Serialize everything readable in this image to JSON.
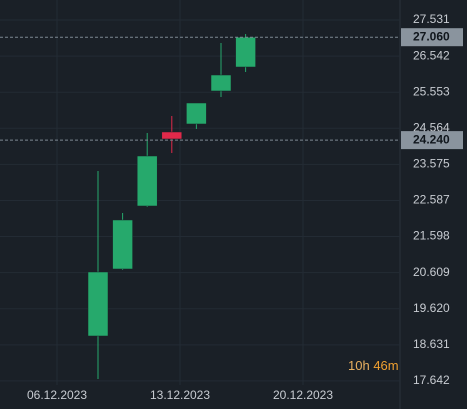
{
  "chart_data": {
    "type": "candlestick",
    "categories": [
      null,
      null,
      null,
      null,
      null,
      null,
      null
    ],
    "open": [
      18.873,
      20.709,
      22.435,
      24.463,
      24.682,
      25.586,
      26.243
    ],
    "high": [
      23.394,
      22.243,
      24.435,
      24.901,
      25.257,
      26.901,
      27.147
    ],
    "low": [
      17.695,
      20.682,
      22.408,
      23.887,
      24.545,
      25.421,
      26.106
    ],
    "close": [
      20.627,
      22.052,
      23.805,
      24.271,
      25.257,
      26.024,
      27.06
    ],
    "up_color": "#26a96c",
    "down_color": "#e0294a",
    "ylim": [
      16.873,
      28.079
    ],
    "yticks": [
      17.642,
      18.631,
      {
        "value": 19.62,
        "label": "19.620"
      },
      20.609,
      21.598,
      22.587,
      23.575,
      24.564,
      25.553,
      26.542,
      27.531
    ],
    "x_labels": [
      "06.12.2023",
      "13.12.2023",
      "20.12.2023"
    ],
    "price_lines": [
      {
        "value": 27.06,
        "label": "27.060"
      },
      {
        "value": 24.24,
        "label": "24.240"
      }
    ],
    "countdown_hours": "10h",
    "countdown_minutes": "46m",
    "grid": true
  }
}
